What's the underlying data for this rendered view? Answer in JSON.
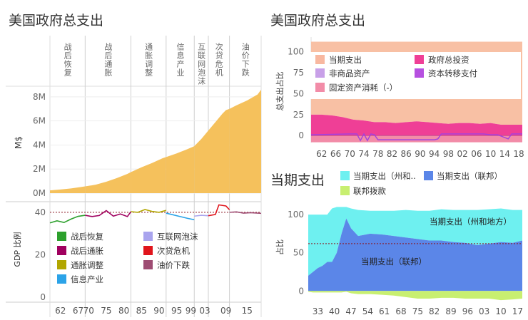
{
  "chart_data": [
    {
      "id": "left-top",
      "type": "area",
      "title": "美国政府总支出",
      "ylabel": "M$",
      "ylim": [
        0,
        9000000
      ],
      "yticks": [
        {
          "v": 0,
          "label": "0M"
        },
        {
          "v": 2000000,
          "label": "2M"
        },
        {
          "v": 4000000,
          "label": "4M"
        },
        {
          "v": 6000000,
          "label": "6M"
        },
        {
          "v": 8000000,
          "label": "8M"
        }
      ],
      "xlim": [
        1959,
        2019
      ],
      "xticks": [
        {
          "v": 1962,
          "label": "62"
        },
        {
          "v": 1967,
          "label": "67"
        },
        {
          "v": 1970,
          "label": "70"
        },
        {
          "v": 1975,
          "label": "75"
        },
        {
          "v": 1980,
          "label": "80"
        },
        {
          "v": 1985,
          "label": "85"
        },
        {
          "v": 1990,
          "label": "90"
        },
        {
          "v": 1995,
          "label": "95"
        },
        {
          "v": 1999,
          "label": "99"
        },
        {
          "v": 2003,
          "label": "03"
        },
        {
          "v": 2009,
          "label": "09"
        },
        {
          "v": 2015,
          "label": "15"
        }
      ],
      "color": "#f5c15c",
      "periods": [
        {
          "name": "战后恢复",
          "start": 1959,
          "end": 1969,
          "color": "#2ca02c"
        },
        {
          "name": "战后通胀",
          "start": 1969,
          "end": 1982,
          "color": "#a0005f"
        },
        {
          "name": "通胀调整",
          "start": 1982,
          "end": 1992,
          "color": "#b2a600"
        },
        {
          "name": "信息产业",
          "start": 1992,
          "end": 2000,
          "color": "#2ba3e8"
        },
        {
          "name": "互联网泡沫",
          "start": 2000,
          "end": 2004,
          "color": "#a9a4ee"
        },
        {
          "name": "次贷危机",
          "start": 2004,
          "end": 2010,
          "color": "#e0151c"
        },
        {
          "name": "油价下跌",
          "start": 2010,
          "end": 2019,
          "color": "#9e4c73"
        }
      ],
      "x": [
        1959,
        1962,
        1965,
        1968,
        1969,
        1972,
        1975,
        1978,
        1981,
        1982,
        1985,
        1988,
        1991,
        1992,
        1995,
        1998,
        2000,
        2002,
        2004,
        2006,
        2008,
        2009,
        2010,
        2012,
        2015,
        2018,
        2019
      ],
      "y": [
        230000,
        300000,
        390000,
        520000,
        560000,
        700000,
        950000,
        1250000,
        1600000,
        1750000,
        2150000,
        2500000,
        2900000,
        3000000,
        3300000,
        3650000,
        3900000,
        4500000,
        5200000,
        5900000,
        6600000,
        6900000,
        7000000,
        7300000,
        7700000,
        8200000,
        8600000
      ]
    },
    {
      "id": "left-bottom",
      "type": "line",
      "ylabel": "GDP 比例",
      "ylim": [
        0,
        45
      ],
      "yticks": [
        {
          "v": 0,
          "label": "0"
        },
        {
          "v": 20,
          "label": "20"
        },
        {
          "v": 40,
          "label": "40"
        }
      ],
      "reference": 40,
      "series": [
        {
          "name": "战后恢复",
          "x": [
            1959,
            1961,
            1963,
            1965,
            1967,
            1969
          ],
          "values": [
            35.0,
            36.0,
            35.2,
            36.8,
            38.1,
            38.6
          ]
        },
        {
          "name": "战后通胀",
          "x": [
            1969,
            1971,
            1973,
            1975,
            1977,
            1979,
            1981,
            1982
          ],
          "values": [
            38.6,
            38.0,
            38.5,
            40.8,
            38.2,
            39.2,
            38.0,
            40.3
          ]
        },
        {
          "name": "通胀调整",
          "x": [
            1982,
            1984,
            1986,
            1988,
            1990,
            1992
          ],
          "values": [
            40.3,
            40.0,
            41.3,
            40.4,
            40.0,
            40.9
          ]
        },
        {
          "name": "信息产业",
          "x": [
            1992,
            1994,
            1996,
            1998,
            2000
          ],
          "values": [
            39.6,
            38.8,
            38.0,
            37.2,
            36.5
          ]
        },
        {
          "name": "互联网泡沫",
          "x": [
            2000,
            2002,
            2004
          ],
          "values": [
            38.2,
            38.6,
            38.4
          ]
        },
        {
          "name": "次贷危机",
          "x": [
            2004,
            2006,
            2007,
            2009,
            2010
          ],
          "values": [
            38.4,
            39.0,
            43.5,
            43.0,
            41.2
          ]
        },
        {
          "name": "油价下跌",
          "x": [
            2010,
            2012,
            2014,
            2016,
            2019
          ],
          "values": [
            40.0,
            40.2,
            39.6,
            39.8,
            39.5
          ]
        }
      ]
    },
    {
      "id": "right-top",
      "type": "area",
      "title": "美国政府总支出",
      "ylabel": "总支出占比",
      "ylim": [
        -10,
        115
      ],
      "yticks": [
        {
          "v": 0,
          "label": "0"
        },
        {
          "v": 25,
          "label": "25"
        },
        {
          "v": 50,
          "label": "50"
        },
        {
          "v": 75,
          "label": "75"
        },
        {
          "v": 100,
          "label": "100"
        }
      ],
      "xlim": [
        1959,
        2019
      ],
      "xticks": [
        {
          "v": 1962,
          "label": "62"
        },
        {
          "v": 1966,
          "label": "66"
        },
        {
          "v": 1970,
          "label": "70"
        },
        {
          "v": 1974,
          "label": "74"
        },
        {
          "v": 1978,
          "label": "78"
        },
        {
          "v": 1982,
          "label": "82"
        },
        {
          "v": 1986,
          "label": "86"
        },
        {
          "v": 1990,
          "label": "90"
        },
        {
          "v": 1994,
          "label": "94"
        },
        {
          "v": 1998,
          "label": "98"
        },
        {
          "v": 2002,
          "label": "02"
        },
        {
          "v": 2006,
          "label": "06"
        },
        {
          "v": 2010,
          "label": "10"
        },
        {
          "v": 2014,
          "label": "14"
        },
        {
          "v": 2018,
          "label": "18"
        }
      ],
      "legend": [
        {
          "name": "当期支出",
          "color": "#f8b8a0"
        },
        {
          "name": "政府总投资",
          "color": "#ef3f96"
        },
        {
          "name": "非商品资产",
          "color": "#c8a0e8"
        },
        {
          "name": "资本转移支付",
          "color": "#b650e0"
        },
        {
          "name": "固定资产消耗（-）",
          "color": "#f28ca8"
        }
      ],
      "x": [
        1959,
        1962,
        1965,
        1968,
        1971,
        1974,
        1977,
        1980,
        1983,
        1986,
        1989,
        1992,
        1995,
        1998,
        2001,
        2004,
        2007,
        2010,
        2013,
        2016,
        2019
      ],
      "series": [
        {
          "name": "当期支出",
          "values": [
            100,
            100,
            100,
            100,
            100,
            100,
            100,
            100,
            100,
            100,
            100,
            100,
            100,
            100,
            100,
            100,
            100,
            100,
            100,
            100,
            100
          ]
        },
        {
          "name": "政府总投资",
          "values": [
            25,
            25,
            24,
            22,
            19,
            18,
            16,
            16,
            15,
            16,
            17,
            16,
            15,
            14,
            15,
            15,
            14,
            15,
            13,
            13,
            13
          ]
        },
        {
          "name": "固定资产消耗（-）",
          "values": [
            -8,
            -8,
            -8,
            -8,
            -8,
            -8,
            -8,
            -8,
            -8,
            -8,
            -8,
            -8,
            -8,
            -8,
            -8,
            -8,
            -8,
            -8,
            -8,
            -8,
            -8
          ]
        }
      ],
      "series_transfers": {
        "name": "资本转移支付",
        "x": [
          1959,
          1970,
          1972,
          1973,
          1974,
          1975,
          1976,
          1977,
          1978,
          1979,
          1986,
          1994,
          1995,
          1996,
          2000,
          2004,
          2008,
          2010,
          2012,
          2015,
          2016,
          2017,
          2019
        ],
        "values": [
          1,
          2,
          2,
          -6,
          2,
          -6,
          2,
          1,
          -5,
          -5,
          -5,
          -5,
          -4,
          2,
          2,
          2,
          2,
          1,
          1,
          -4,
          2,
          2,
          2
        ]
      }
    },
    {
      "id": "right-bottom",
      "type": "area",
      "title": "当期支出",
      "ylabel": "占比",
      "ylim": [
        -10,
        115
      ],
      "yticks": [
        {
          "v": 0,
          "label": "0"
        },
        {
          "v": 50,
          "label": "50"
        },
        {
          "v": 100,
          "label": "100"
        }
      ],
      "reference": 62,
      "xlim": [
        1929,
        2019
      ],
      "xticks": [
        {
          "v": 1933,
          "label": "33"
        },
        {
          "v": 1940,
          "label": "40"
        },
        {
          "v": 1947,
          "label": "47"
        },
        {
          "v": 1954,
          "label": "54"
        },
        {
          "v": 1961,
          "label": "61"
        },
        {
          "v": 1968,
          "label": "68"
        },
        {
          "v": 1975,
          "label": "75"
        },
        {
          "v": 1982,
          "label": "82"
        },
        {
          "v": 1989,
          "label": "89"
        },
        {
          "v": 1996,
          "label": "96"
        },
        {
          "v": 2003,
          "label": "03"
        },
        {
          "v": 2010,
          "label": "10"
        },
        {
          "v": 2017,
          "label": "17"
        }
      ],
      "legend": [
        {
          "name": "当期支出（州和..",
          "color": "#6ef0f0"
        },
        {
          "name": "当期支出（联邦）",
          "color": "#5b86e8"
        },
        {
          "name": "联邦拨款",
          "color": "#c8ef70"
        }
      ],
      "labels": [
        "当期支出（州和地方）",
        "当期支出（联邦）"
      ],
      "x": [
        1929,
        1931,
        1933,
        1935,
        1937,
        1939,
        1941,
        1943,
        1945,
        1947,
        1950,
        1955,
        1960,
        1965,
        1970,
        1975,
        1980,
        1985,
        1990,
        1995,
        2000,
        2005,
        2010,
        2015,
        2019
      ],
      "series": [
        {
          "name": "当期支出（联邦）",
          "values": [
            20,
            25,
            30,
            33,
            38,
            38,
            50,
            75,
            95,
            82,
            72,
            75,
            74,
            72,
            70,
            68,
            66,
            66,
            64,
            63,
            60,
            62,
            64,
            63,
            66
          ]
        },
        {
          "name": "当期支出（州和地方）",
          "values": [
            100,
            100,
            100,
            100,
            100,
            108,
            110,
            110,
            110,
            108,
            106,
            105,
            105,
            105,
            106,
            105,
            105,
            107,
            106,
            106,
            106,
            107,
            108,
            106,
            106
          ]
        },
        {
          "name": "联邦拨款",
          "values": [
            -1,
            -2,
            -2,
            -2,
            -2,
            -2,
            -2,
            -2,
            -1,
            -3,
            -4,
            -4,
            -5,
            -6,
            -8,
            -10,
            -10,
            -9,
            -9,
            -10,
            -10,
            -10,
            -12,
            -11,
            -10
          ]
        }
      ]
    }
  ]
}
